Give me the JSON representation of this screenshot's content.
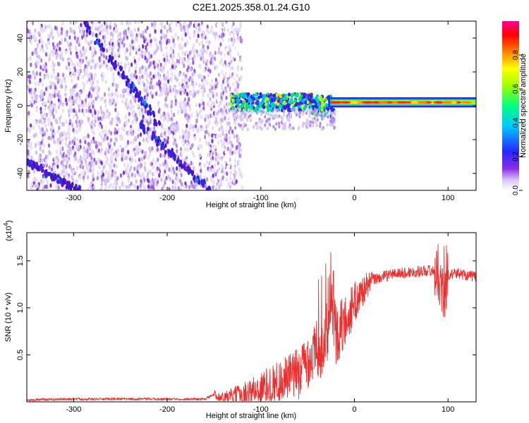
{
  "figure": {
    "title": "C2E1.2025.358.01.24.G10"
  },
  "chart_data": [
    {
      "type": "heatmap",
      "xlabel": "Height of straight line (km)",
      "ylabel": "Frequency (Hz)",
      "xlim": [
        -350,
        130
      ],
      "ylim": [
        -50,
        50
      ],
      "xticks": [
        -300,
        -200,
        -100,
        0,
        100
      ],
      "yticks": [
        -40,
        -20,
        0,
        20,
        40
      ],
      "colorbar": {
        "label": "Normalized spectral amplitude",
        "range": [
          0,
          1
        ],
        "ticks": [
          "0.0",
          "0.2",
          "0.4",
          "0.6",
          "0.8"
        ],
        "colormap": [
          "#ffffff",
          "#c8a8f0",
          "#8a2be2",
          "#2828ff",
          "#00c8ff",
          "#00ff80",
          "#a0ff00",
          "#ffff00",
          "#ff8000",
          "#ff0000",
          "#ff00a0"
        ]
      },
      "features": [
        {
          "name": "diagonal-track-1",
          "x": [
            -290,
            -210
          ],
          "y": [
            50,
            -10
          ]
        },
        {
          "name": "diagonal-track-2",
          "x": [
            -230,
            -155
          ],
          "y": [
            -10,
            -50
          ]
        },
        {
          "name": "diagonal-track-3",
          "x": [
            -350,
            -295
          ],
          "y": [
            -33,
            -50
          ]
        },
        {
          "name": "signal-band",
          "x": [
            -130,
            130
          ],
          "y": [
            2,
            2
          ]
        }
      ],
      "noise_extent_x": [
        -350,
        -125
      ]
    },
    {
      "type": "line",
      "xlabel": "Height of straight line (km)",
      "ylabel": "SNR (10 * v/v)",
      "yscale_note": "(x10",
      "yscale_exp": "4",
      "xlim": [
        -350,
        130
      ],
      "ylim": [
        0,
        1.8
      ],
      "xticks": [
        -300,
        -200,
        -100,
        0,
        100
      ],
      "yticks": [
        0.5,
        1.0,
        1.5
      ],
      "ytick_labels": [
        "0.5",
        "1.0",
        "1.5"
      ],
      "color": "#e83030",
      "series": [
        {
          "x": [
            -350,
            -300,
            -250,
            -200,
            -160,
            -150,
            -140,
            -120,
            -100,
            -80,
            -60,
            -50,
            -40,
            -30,
            -25,
            -20,
            -10,
            0,
            10,
            20,
            30,
            40,
            50,
            60,
            70,
            80,
            90,
            95,
            100,
            110,
            120,
            130
          ],
          "values": [
            0.02,
            0.03,
            0.03,
            0.03,
            0.03,
            0.08,
            0.04,
            0.08,
            0.15,
            0.22,
            0.3,
            0.45,
            0.55,
            0.65,
            1.3,
            0.7,
            0.85,
            1.05,
            1.2,
            1.3,
            1.33,
            1.36,
            1.37,
            1.38,
            1.39,
            1.4,
            1.38,
            1.1,
            1.35,
            1.37,
            1.35,
            1.33
          ]
        }
      ]
    }
  ]
}
